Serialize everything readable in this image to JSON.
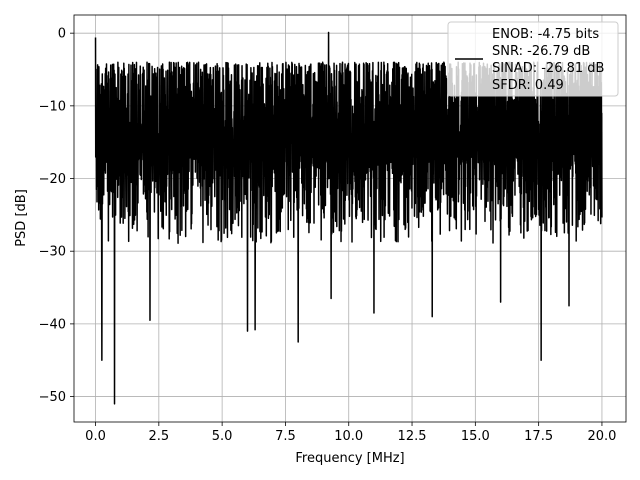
{
  "chart_data": {
    "type": "line",
    "title": "",
    "xlabel": "Frequency [MHz]",
    "ylabel": "PSD [dB]",
    "xlim": [
      -0.85,
      20.95
    ],
    "ylim": [
      -53.5,
      2.5
    ],
    "x_ticks": [
      0.0,
      2.5,
      5.0,
      7.5,
      10.0,
      12.5,
      15.0,
      17.5,
      20.0
    ],
    "x_tick_labels": [
      "0.0",
      "2.5",
      "5.0",
      "7.5",
      "10.0",
      "12.5",
      "15.0",
      "17.5",
      "20.0"
    ],
    "y_ticks": [
      0,
      -10,
      -20,
      -30,
      -40,
      -50
    ],
    "y_tick_labels": [
      "0",
      "−10",
      "−20",
      "−30",
      "−40",
      "−50"
    ],
    "grid": true,
    "legend": {
      "placement": "top-right",
      "entries": [
        "ENOB: -4.75 bits",
        "SNR: -26.79 dB",
        "SINAD: -26.81 dB",
        "SFDR: 0.49"
      ]
    },
    "series": [
      {
        "color": "#000000",
        "x_start": 0.0,
        "x_end": 20.0,
        "num_points": 2400,
        "envelope_upper_db": -3,
        "envelope_lower_db": -32,
        "start_peak_db": -0.6,
        "notable_peaks": [
          {
            "x": 0.0,
            "y": -0.6
          },
          {
            "x": 0.88,
            "y": -4.0
          },
          {
            "x": 9.2,
            "y": 0.1
          }
        ],
        "notable_dips": [
          {
            "x": 0.25,
            "y": -45.0
          },
          {
            "x": 0.75,
            "y": -51.0
          },
          {
            "x": 2.15,
            "y": -39.5
          },
          {
            "x": 6.0,
            "y": -41.0
          },
          {
            "x": 6.3,
            "y": -40.8
          },
          {
            "x": 8.0,
            "y": -42.5
          },
          {
            "x": 9.3,
            "y": -36.5
          },
          {
            "x": 11.0,
            "y": -38.5
          },
          {
            "x": 13.3,
            "y": -39.0
          },
          {
            "x": 16.0,
            "y": -37.0
          },
          {
            "x": 17.6,
            "y": -45.0
          },
          {
            "x": 18.7,
            "y": -37.5
          }
        ]
      }
    ]
  }
}
